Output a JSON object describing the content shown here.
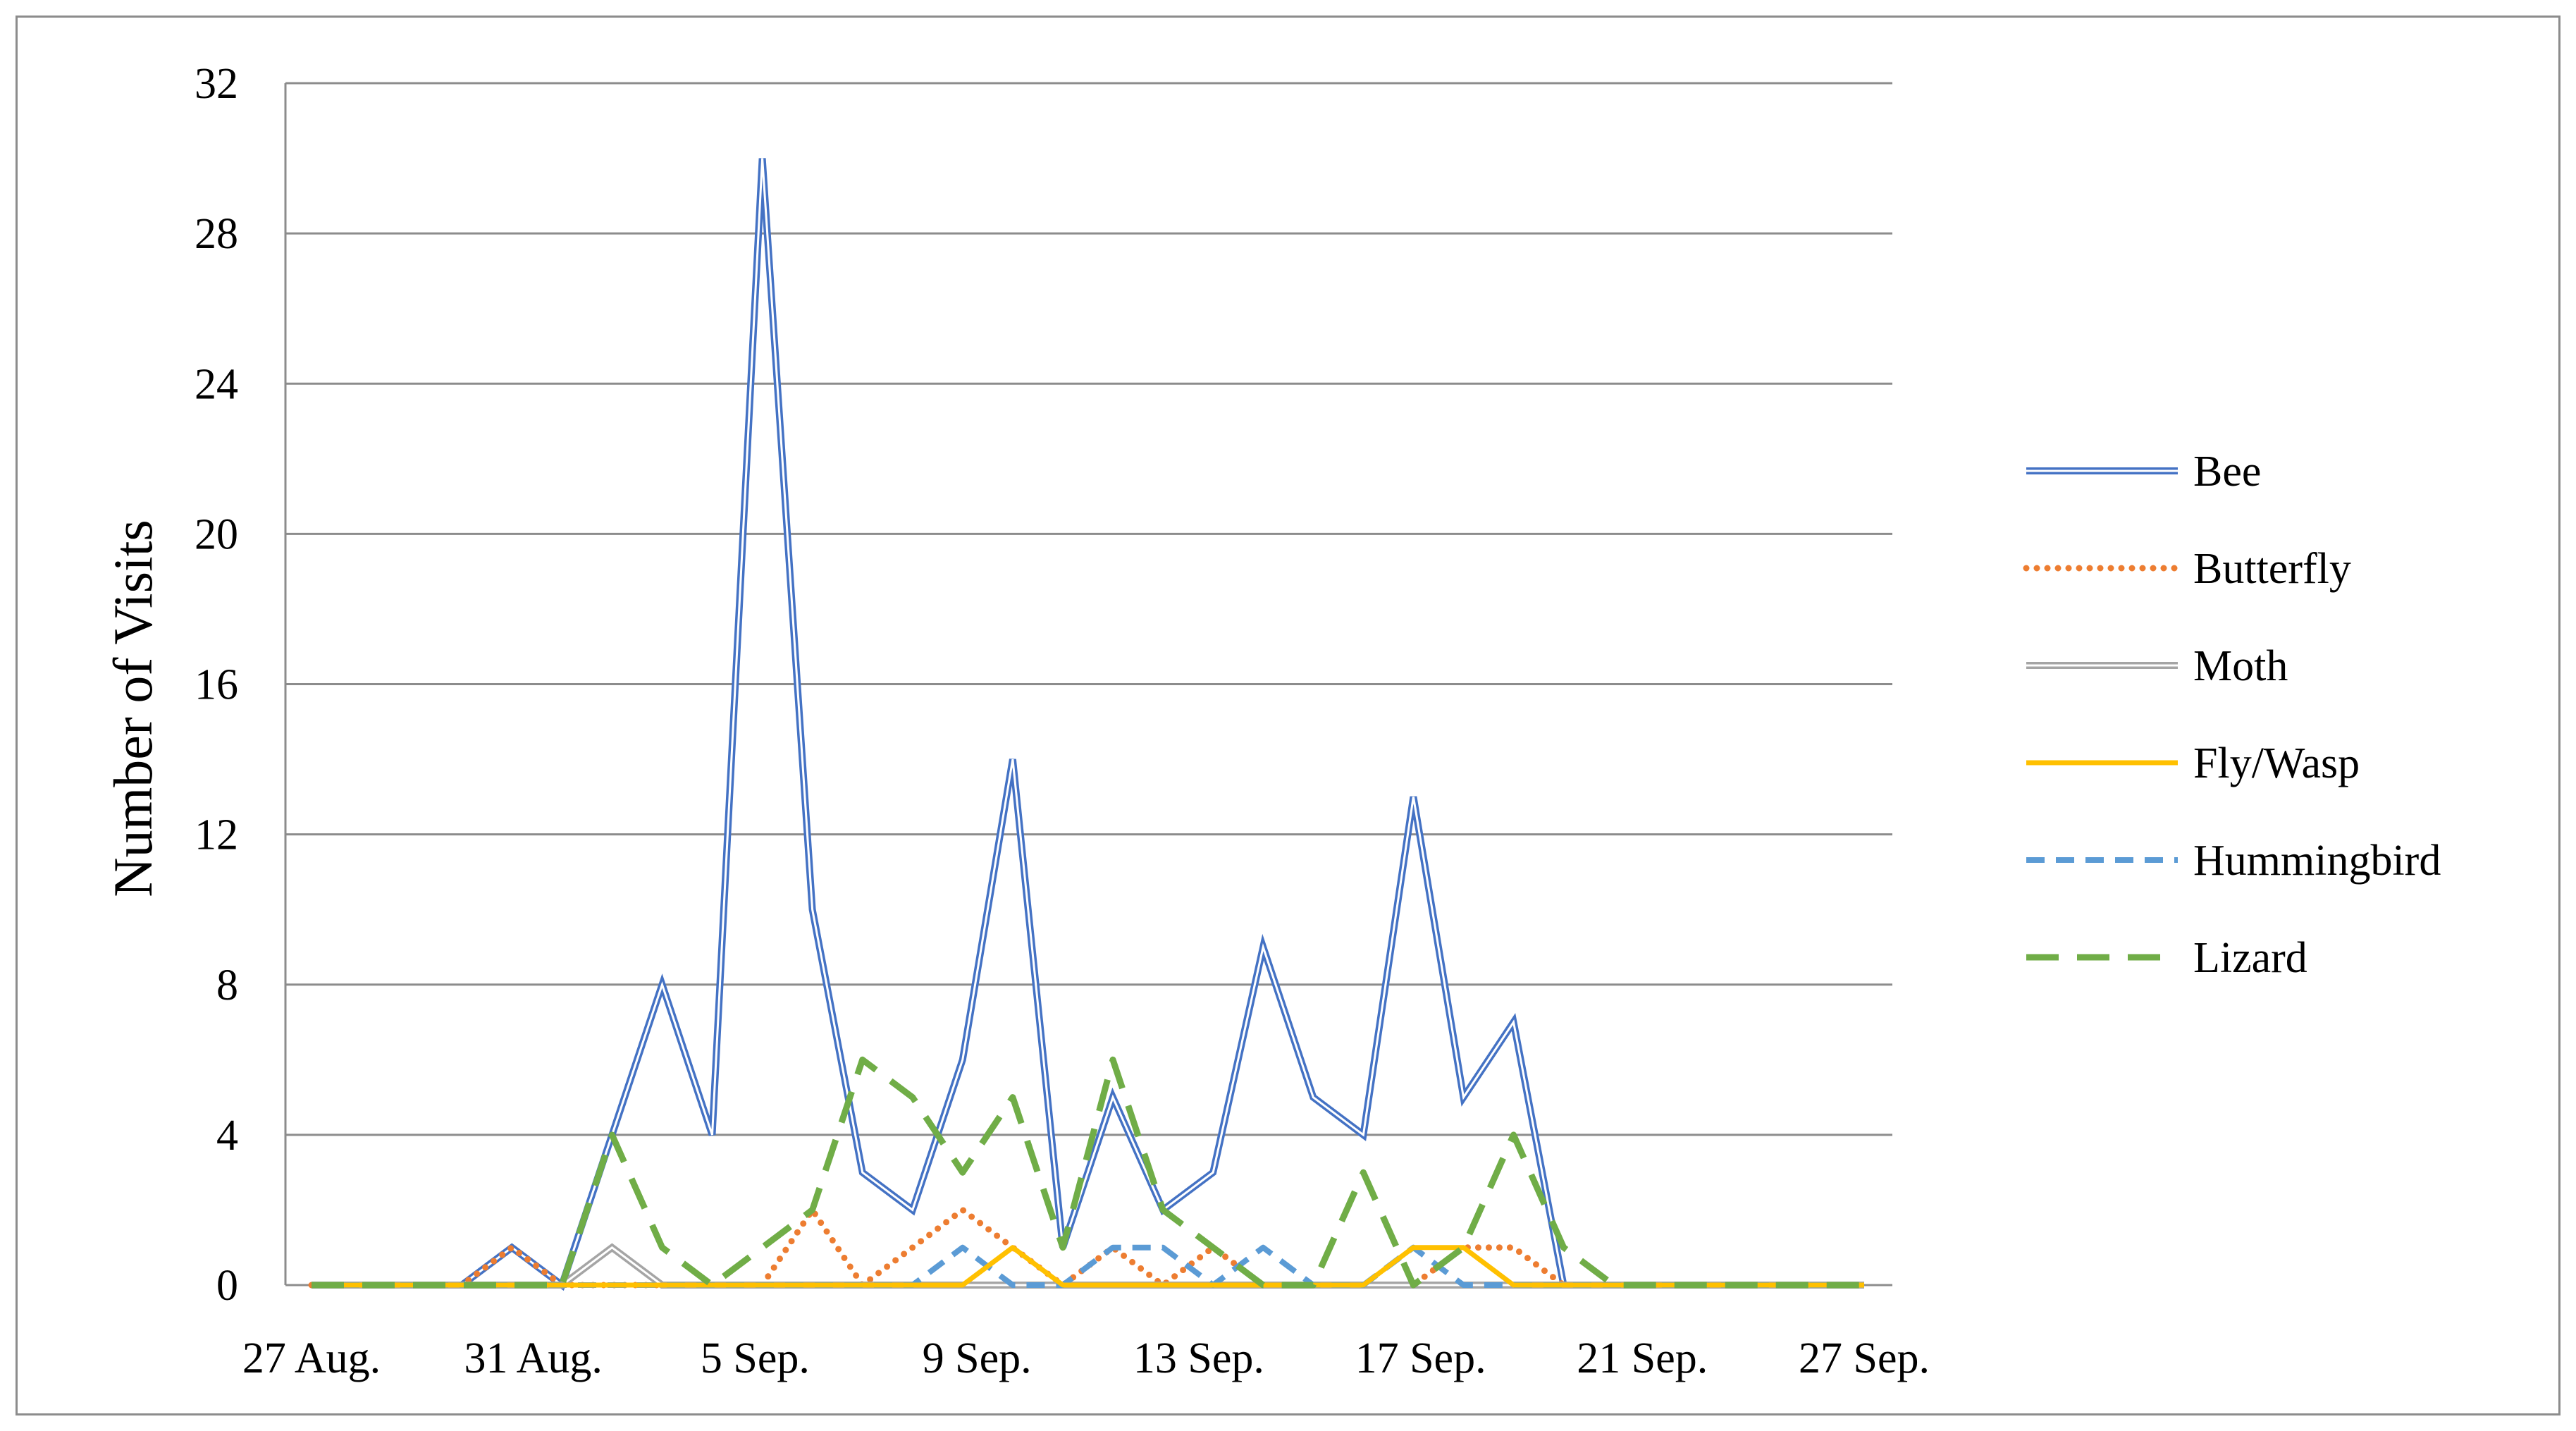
{
  "chart_data": {
    "type": "line",
    "ylabel": "Number of Visits",
    "xlabel": "",
    "title": "",
    "ylim": [
      0,
      32
    ],
    "yticks": [
      0,
      4,
      8,
      12,
      16,
      20,
      24,
      28,
      32
    ],
    "x_tick_labels": [
      "27 Aug.",
      "31 Aug.",
      "5 Sep.",
      "9 Sep.",
      "13 Sep.",
      "17 Sep.",
      "21 Sep.",
      "27 Sep."
    ],
    "x": [
      "27 Aug.",
      "28 Aug.",
      "29 Aug.",
      "30 Aug.",
      "31 Aug.",
      "1 Sep.",
      "2 Sep.",
      "3 Sep.",
      "4 Sep.",
      "5 Sep.",
      "6 Sep.",
      "7 Sep.",
      "8 Sep.",
      "9 Sep.",
      "10 Sep.",
      "11 Sep.",
      "12 Sep.",
      "13 Sep.",
      "14 Sep.",
      "15 Sep.",
      "16 Sep.",
      "17 Sep.",
      "18 Sep.",
      "19 Sep.",
      "20 Sep.",
      "21 Sep.",
      "22 Sep.",
      "23 Sep.",
      "24 Sep.",
      "25 Sep.",
      "26 Sep.",
      "27 Sep."
    ],
    "grid": true,
    "legend_position": "right",
    "series": [
      {
        "name": "Bee",
        "color": "#4472C4",
        "style": "double",
        "values": [
          0,
          0,
          0,
          0,
          1,
          0,
          4,
          8,
          4,
          30,
          10,
          3,
          2,
          6,
          14,
          1,
          5,
          2,
          3,
          9,
          5,
          4,
          13,
          5,
          7,
          0,
          0,
          0,
          0,
          0,
          0,
          0
        ]
      },
      {
        "name": "Butterfly",
        "color": "#ED7D31",
        "style": "dotted",
        "values": [
          0,
          0,
          0,
          0,
          1,
          0,
          0,
          0,
          0,
          0,
          2,
          0,
          1,
          2,
          1,
          0,
          1,
          0,
          1,
          0,
          0,
          0,
          0,
          1,
          1,
          0,
          0,
          0,
          0,
          0,
          0,
          0
        ]
      },
      {
        "name": "Moth",
        "color": "#A5A5A5",
        "style": "double",
        "values": [
          0,
          0,
          0,
          0,
          0,
          0,
          1,
          0,
          0,
          0,
          0,
          0,
          0,
          0,
          0,
          0,
          0,
          0,
          0,
          0,
          0,
          0,
          0,
          0,
          0,
          0,
          0,
          0,
          0,
          0,
          0,
          0
        ]
      },
      {
        "name": "Fly/Wasp",
        "color": "#FFC000",
        "style": "solid",
        "values": [
          0,
          0,
          0,
          0,
          0,
          0,
          0,
          0,
          0,
          0,
          0,
          0,
          0,
          0,
          1,
          0,
          0,
          0,
          0,
          0,
          0,
          0,
          1,
          1,
          0,
          0,
          0,
          0,
          0,
          0,
          0,
          0
        ]
      },
      {
        "name": "Hummingbird",
        "color": "#5B9BD5",
        "style": "dashed",
        "values": [
          0,
          0,
          0,
          0,
          0,
          0,
          0,
          0,
          0,
          0,
          0,
          0,
          0,
          1,
          0,
          0,
          1,
          1,
          0,
          1,
          0,
          0,
          1,
          0,
          0,
          0,
          0,
          0,
          0,
          0,
          0,
          0
        ]
      },
      {
        "name": "Lizard",
        "color": "#70AD47",
        "style": "longdash",
        "values": [
          0,
          0,
          0,
          0,
          0,
          0,
          4,
          1,
          0,
          1,
          2,
          6,
          5,
          3,
          5,
          1,
          6,
          2,
          1,
          0,
          0,
          3,
          0,
          1,
          4,
          1,
          0,
          0,
          0,
          0,
          0,
          0
        ]
      }
    ]
  }
}
